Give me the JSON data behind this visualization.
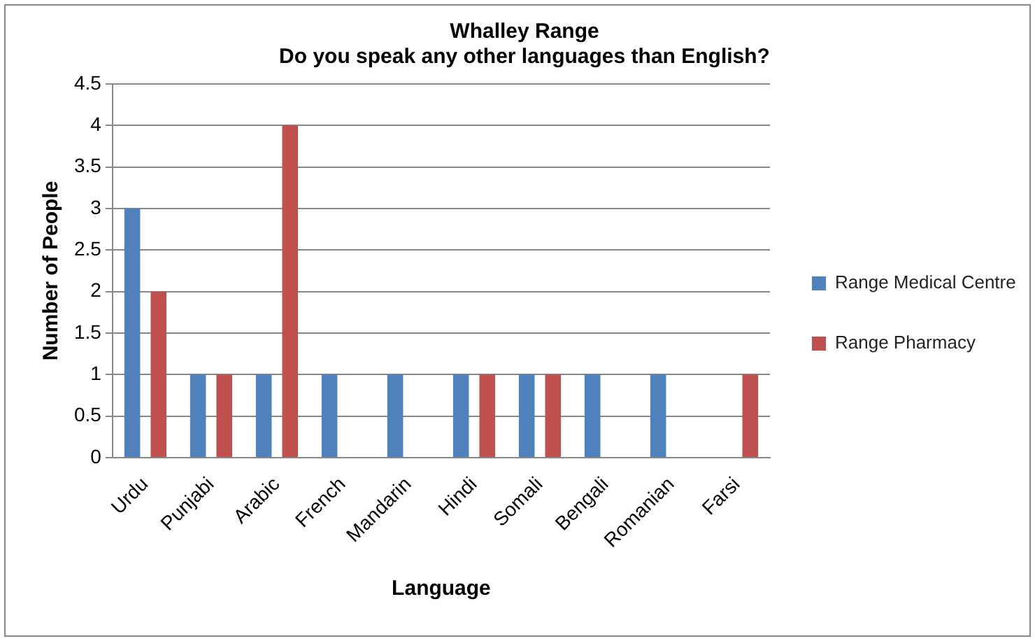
{
  "chart_data": {
    "type": "bar",
    "title": [
      "Whalley Range",
      "Do you speak any other languages than English?"
    ],
    "xlabel": "Language",
    "ylabel": "Number of People",
    "categories": [
      "Urdu",
      "Punjabi",
      "Arabic",
      "French",
      "Mandarin",
      "Hindi",
      "Somali",
      "Bengali",
      "Romanian",
      "Farsi"
    ],
    "series": [
      {
        "name": "Range Medical Centre",
        "color": "#4f81bd",
        "values": [
          3,
          1,
          1,
          1,
          1,
          1,
          1,
          1,
          1,
          0
        ]
      },
      {
        "name": "Range Pharmacy",
        "color": "#c0504d",
        "values": [
          2,
          1,
          4,
          0,
          0,
          1,
          1,
          0,
          0,
          1
        ]
      }
    ],
    "ylim": [
      0,
      4.5
    ],
    "yticks": [
      0,
      0.5,
      1,
      1.5,
      2,
      2.5,
      3,
      3.5,
      4,
      4.5
    ],
    "grid": "y",
    "legend": "right"
  }
}
